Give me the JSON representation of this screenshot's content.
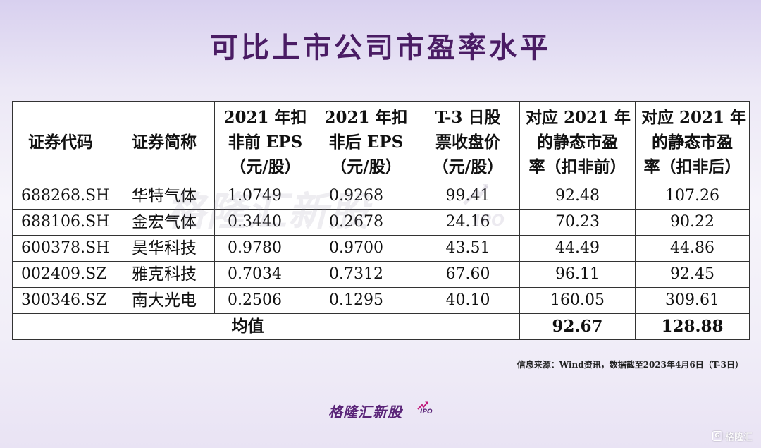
{
  "title": "可比上市公司市盈率水平",
  "table": {
    "headers": [
      [
        "证券代码"
      ],
      [
        "证券简称"
      ],
      [
        "2021 年扣",
        "非前 EPS",
        "（元/股）"
      ],
      [
        "2021 年扣",
        "非后 EPS",
        "（元/股）"
      ],
      [
        "T-3 日股",
        "票收盘价",
        "（元/股）"
      ],
      [
        "对应 2021 年",
        "的静态市盈",
        "率（扣非前）"
      ],
      [
        "对应 2021 年",
        "的静态市盈",
        "率（扣非后）"
      ]
    ],
    "rows": [
      {
        "code": "688268.SH",
        "name": "华特气体",
        "eps_before": "1.0749",
        "eps_after": "0.9268",
        "price": "99.41",
        "pe_before": "92.48",
        "pe_after": "107.26"
      },
      {
        "code": "688106.SH",
        "name": "金宏气体",
        "eps_before": "0.3440",
        "eps_after": "0.2678",
        "price": "24.16",
        "pe_before": "70.23",
        "pe_after": "90.22"
      },
      {
        "code": "600378.SH",
        "name": "昊华科技",
        "eps_before": "0.9780",
        "eps_after": "0.9700",
        "price": "43.51",
        "pe_before": "44.49",
        "pe_after": "44.86"
      },
      {
        "code": "002409.SZ",
        "name": "雅克科技",
        "eps_before": "0.7034",
        "eps_after": "0.7312",
        "price": "67.60",
        "pe_before": "96.11",
        "pe_after": "92.45"
      },
      {
        "code": "300346.SZ",
        "name": "南大光电",
        "eps_before": "0.2506",
        "eps_after": "0.1295",
        "price": "40.10",
        "pe_before": "160.05",
        "pe_after": "309.61"
      }
    ],
    "average": {
      "label": "均值",
      "pe_before": "92.67",
      "pe_after": "128.88"
    }
  },
  "watermark": {
    "text": "格隆汇新股",
    "suffix": "IPO",
    "icon": "trend-arrow-icon"
  },
  "source": "信息来源：Wind资讯，数据截至2023年4月6日（T-3日）",
  "brand": {
    "text": "格隆汇新股",
    "suffix": "IPO",
    "icon": "trend-arrow-icon",
    "color": "#5a2478"
  },
  "corner": {
    "logo_letter": "G",
    "text": "格隆汇"
  },
  "colors": {
    "title": "#4a1c64",
    "border": "#333333"
  }
}
